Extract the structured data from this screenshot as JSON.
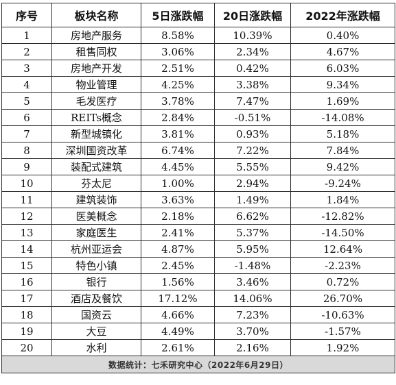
{
  "table": {
    "headers": [
      "序号",
      "板块名称",
      "5日涨跌幅",
      "20日涨跌幅",
      "2022年涨跌幅"
    ],
    "rows": [
      [
        "1",
        "房地产服务",
        "8.58%",
        "10.39%",
        "0.40%"
      ],
      [
        "2",
        "租售同权",
        "3.06%",
        "2.34%",
        "4.67%"
      ],
      [
        "3",
        "房地产开发",
        "2.51%",
        "0.42%",
        "6.03%"
      ],
      [
        "4",
        "物业管理",
        "4.25%",
        "3.38%",
        "9.34%"
      ],
      [
        "5",
        "毛发医疗",
        "3.78%",
        "7.47%",
        "1.69%"
      ],
      [
        "6",
        "REITs概念",
        "2.84%",
        "-0.51%",
        "-14.08%"
      ],
      [
        "7",
        "新型城镇化",
        "3.81%",
        "0.93%",
        "5.18%"
      ],
      [
        "8",
        "深圳国资改革",
        "6.74%",
        "7.22%",
        "7.84%"
      ],
      [
        "9",
        "装配式建筑",
        "4.45%",
        "5.55%",
        "9.42%"
      ],
      [
        "10",
        "芬太尼",
        "1.00%",
        "2.94%",
        "-9.24%"
      ],
      [
        "11",
        "建筑装饰",
        "3.63%",
        "1.49%",
        "1.84%"
      ],
      [
        "12",
        "医美概念",
        "2.18%",
        "6.62%",
        "-12.82%"
      ],
      [
        "13",
        "家庭医生",
        "2.41%",
        "5.37%",
        "-14.50%"
      ],
      [
        "14",
        "杭州亚运会",
        "4.87%",
        "5.95%",
        "12.64%"
      ],
      [
        "15",
        "特色小镇",
        "2.45%",
        "-1.48%",
        "-2.23%"
      ],
      [
        "16",
        "银行",
        "1.56%",
        "3.46%",
        "0.72%"
      ],
      [
        "17",
        "酒店及餐饮",
        "17.12%",
        "14.06%",
        "26.70%"
      ],
      [
        "18",
        "国资云",
        "4.66%",
        "7.23%",
        "-10.63%"
      ],
      [
        "19",
        "大豆",
        "4.49%",
        "3.70%",
        "-1.57%"
      ],
      [
        "20",
        "水利",
        "2.61%",
        "2.16%",
        "1.92%"
      ]
    ],
    "footer": "数据统计：七禾研究中心（2022年6月29日）"
  }
}
